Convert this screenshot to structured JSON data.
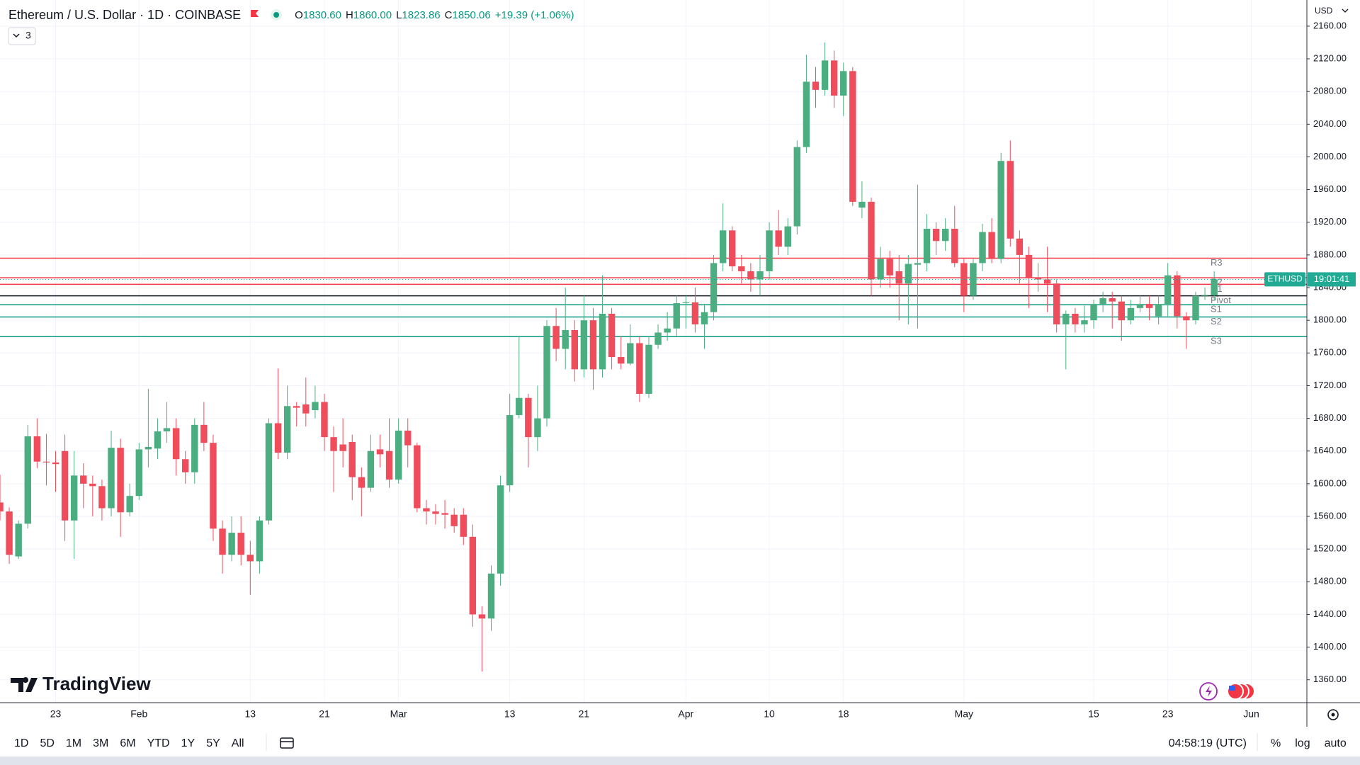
{
  "header": {
    "symbol": "Ethereum / U.S. Dollar · 1D · COINBASE",
    "ohlc": [
      {
        "key": "O",
        "value": "1830.60"
      },
      {
        "key": "H",
        "value": "1860.00"
      },
      {
        "key": "L",
        "value": "1823.86"
      },
      {
        "key": "C",
        "value": "1850.06"
      }
    ],
    "change": "+19.39 (+1.06%)",
    "indicators_count": "3"
  },
  "brand": "TradingView",
  "chart_data": {
    "type": "candlestick",
    "currency": "USD",
    "x": [
      "01-17",
      "01-18",
      "01-19",
      "01-20",
      "01-21",
      "01-22",
      "01-23",
      "01-24",
      "01-25",
      "01-26",
      "01-27",
      "01-28",
      "01-29",
      "01-30",
      "01-31",
      "02-01",
      "02-02",
      "02-03",
      "02-04",
      "02-05",
      "02-06",
      "02-07",
      "02-08",
      "02-09",
      "02-10",
      "02-11",
      "02-12",
      "02-13",
      "02-14",
      "02-15",
      "02-16",
      "02-17",
      "02-18",
      "02-19",
      "02-20",
      "02-21",
      "02-22",
      "02-23",
      "02-24",
      "02-25",
      "02-26",
      "02-27",
      "02-28",
      "03-01",
      "03-02",
      "03-03",
      "03-04",
      "03-05",
      "03-06",
      "03-07",
      "03-08",
      "03-09",
      "03-10",
      "03-11",
      "03-12",
      "03-13",
      "03-14",
      "03-15",
      "03-16",
      "03-17",
      "03-18",
      "03-19",
      "03-20",
      "03-21",
      "03-22",
      "03-23",
      "03-24",
      "03-25",
      "03-26",
      "03-27",
      "03-28",
      "03-29",
      "03-30",
      "03-31",
      "04-01",
      "04-02",
      "04-03",
      "04-04",
      "04-05",
      "04-06",
      "04-07",
      "04-08",
      "04-09",
      "04-10",
      "04-11",
      "04-12",
      "04-13",
      "04-14",
      "04-15",
      "04-16",
      "04-17",
      "04-18",
      "04-19",
      "04-20",
      "04-21",
      "04-22",
      "04-23",
      "04-24",
      "04-25",
      "04-26",
      "04-27",
      "04-28",
      "04-29",
      "04-30",
      "05-01",
      "05-02",
      "05-03",
      "05-04",
      "05-05",
      "05-06",
      "05-07",
      "05-08",
      "05-09",
      "05-10",
      "05-11",
      "05-12",
      "05-13",
      "05-14",
      "05-15",
      "05-16",
      "05-17",
      "05-18",
      "05-19",
      "05-20",
      "05-21",
      "05-22",
      "05-23",
      "05-24",
      "05-25",
      "05-26",
      "05-27",
      "05-28"
    ],
    "open": [
      1577,
      1566,
      1511,
      1551,
      1658,
      1627,
      1626,
      1640,
      1555,
      1610,
      1600,
      1597,
      1570,
      1644,
      1565,
      1585,
      1642,
      1643,
      1664,
      1668,
      1630,
      1614,
      1672,
      1650,
      1545,
      1513,
      1540,
      1513,
      1505,
      1555,
      1674,
      1638,
      1695,
      1697,
      1690,
      1700,
      1657,
      1648,
      1651,
      1608,
      1595,
      1642,
      1640,
      1605,
      1665,
      1647,
      1570,
      1566,
      1564,
      1562,
      1562,
      1535,
      1440,
      1435,
      1490,
      1598,
      1684,
      1705,
      1657,
      1680,
      1793,
      1765,
      1788,
      1740,
      1800,
      1740,
      1808,
      1755,
      1747,
      1772,
      1710,
      1770,
      1785,
      1790,
      1821,
      1822,
      1795,
      1810,
      1870,
      1910,
      1866,
      1860,
      1850,
      1860,
      1910,
      1890,
      1915,
      2012,
      2092,
      2082,
      2118,
      2075,
      2105,
      1938,
      1945,
      1850,
      1875,
      1860,
      1845,
      1868,
      1870,
      1912,
      1897,
      1912,
      1870,
      1830,
      1870,
      1908,
      1875,
      1995,
      1900,
      1880,
      1852,
      1850,
      1845,
      1795,
      1808,
      1795,
      1800,
      1820,
      1827,
      1823,
      1800,
      1815,
      1820,
      1805,
      1820,
      1855,
      1805,
      1800,
      1830,
      1830.6
    ],
    "high": [
      1611,
      1571,
      1555,
      1672,
      1680,
      1661,
      1640,
      1660,
      1640,
      1625,
      1610,
      1605,
      1665,
      1655,
      1600,
      1650,
      1716,
      1680,
      1700,
      1680,
      1640,
      1680,
      1700,
      1660,
      1555,
      1560,
      1560,
      1530,
      1560,
      1680,
      1741,
      1720,
      1700,
      1730,
      1720,
      1710,
      1670,
      1680,
      1660,
      1620,
      1660,
      1660,
      1680,
      1680,
      1680,
      1650,
      1580,
      1575,
      1580,
      1570,
      1570,
      1550,
      1450,
      1500,
      1610,
      1710,
      1780,
      1710,
      1720,
      1800,
      1815,
      1840,
      1800,
      1830,
      1815,
      1855,
      1815,
      1780,
      1795,
      1780,
      1780,
      1795,
      1810,
      1830,
      1830,
      1840,
      1820,
      1880,
      1943,
      1915,
      1880,
      1870,
      1880,
      1920,
      1935,
      1925,
      2020,
      2125,
      2110,
      2140,
      2130,
      2115,
      2110,
      1970,
      1950,
      1890,
      1885,
      1880,
      1880,
      1966,
      1930,
      1920,
      1925,
      1940,
      1875,
      1875,
      1918,
      1925,
      2005,
      2020,
      1910,
      1890,
      1870,
      1890,
      1850,
      1812,
      1815,
      1818,
      1825,
      1835,
      1835,
      1830,
      1825,
      1830,
      1830,
      1830,
      1870,
      1860,
      1810,
      1835,
      1840,
      1860
    ],
    "low": [
      1555,
      1502,
      1508,
      1545,
      1619,
      1598,
      1590,
      1530,
      1508,
      1570,
      1560,
      1555,
      1560,
      1535,
      1560,
      1580,
      1620,
      1630,
      1650,
      1610,
      1600,
      1600,
      1640,
      1530,
      1490,
      1505,
      1500,
      1464,
      1490,
      1550,
      1630,
      1630,
      1670,
      1670,
      1680,
      1640,
      1590,
      1620,
      1580,
      1560,
      1590,
      1620,
      1595,
      1600,
      1620,
      1565,
      1550,
      1550,
      1545,
      1540,
      1525,
      1425,
      1370,
      1420,
      1475,
      1590,
      1680,
      1620,
      1640,
      1670,
      1750,
      1740,
      1725,
      1730,
      1715,
      1730,
      1740,
      1740,
      1745,
      1700,
      1705,
      1765,
      1775,
      1780,
      1790,
      1785,
      1765,
      1800,
      1860,
      1860,
      1845,
      1835,
      1830,
      1850,
      1880,
      1880,
      1905,
      2005,
      2060,
      2075,
      2060,
      2050,
      1940,
      1925,
      1830,
      1840,
      1840,
      1800,
      1795,
      1790,
      1860,
      1880,
      1885,
      1865,
      1810,
      1825,
      1860,
      1870,
      1870,
      1890,
      1845,
      1815,
      1835,
      1810,
      1785,
      1740,
      1785,
      1785,
      1790,
      1810,
      1790,
      1775,
      1795,
      1810,
      1800,
      1795,
      1805,
      1790,
      1765,
      1795,
      1825,
      1823.86
    ],
    "close": [
      1566,
      1513,
      1551,
      1658,
      1627,
      1626,
      1624,
      1555,
      1610,
      1600,
      1597,
      1570,
      1644,
      1565,
      1585,
      1642,
      1645,
      1664,
      1668,
      1630,
      1614,
      1672,
      1650,
      1545,
      1513,
      1540,
      1513,
      1505,
      1555,
      1674,
      1638,
      1695,
      1693,
      1686,
      1700,
      1657,
      1640,
      1640,
      1608,
      1595,
      1640,
      1636,
      1605,
      1665,
      1647,
      1570,
      1566,
      1563,
      1562,
      1548,
      1535,
      1440,
      1435,
      1490,
      1598,
      1684,
      1705,
      1657,
      1680,
      1793,
      1765,
      1788,
      1740,
      1800,
      1740,
      1808,
      1755,
      1747,
      1772,
      1710,
      1770,
      1785,
      1790,
      1821,
      1822,
      1795,
      1810,
      1870,
      1910,
      1866,
      1860,
      1850,
      1860,
      1910,
      1890,
      1915,
      2012,
      2092,
      2082,
      2118,
      2075,
      2105,
      1945,
      1945,
      1850,
      1875,
      1855,
      1845,
      1869,
      1870,
      1912,
      1897,
      1912,
      1870,
      1830,
      1870,
      1908,
      1875,
      1995,
      1900,
      1880,
      1852,
      1850,
      1845,
      1795,
      1808,
      1795,
      1800,
      1820,
      1827,
      1823,
      1800,
      1815,
      1820,
      1815,
      1820,
      1855,
      1805,
      1800,
      1830,
      1831,
      1850.06
    ],
    "up_color": "#4cae80",
    "down_color": "#ef4c5c",
    "xlim": [
      "01-17",
      "06-07"
    ],
    "xticks": [
      {
        "value": "01-23",
        "label": "23"
      },
      {
        "value": "02-01",
        "label": "Feb"
      },
      {
        "value": "02-13",
        "label": "13"
      },
      {
        "value": "02-21",
        "label": "21"
      },
      {
        "value": "03-01",
        "label": "Mar"
      },
      {
        "value": "03-13",
        "label": "13"
      },
      {
        "value": "03-21",
        "label": "21"
      },
      {
        "value": "04-01",
        "label": "Apr"
      },
      {
        "value": "04-10",
        "label": "10"
      },
      {
        "value": "04-18",
        "label": "18"
      },
      {
        "value": "05-01",
        "label": "May"
      },
      {
        "value": "05-15",
        "label": "15"
      },
      {
        "value": "05-23",
        "label": "23"
      },
      {
        "value": "06-01",
        "label": "Jun"
      }
    ],
    "ylim": [
      1332,
      2192
    ],
    "yticks": [
      {
        "value": 1360,
        "label": "1360.00"
      },
      {
        "value": 1400,
        "label": "1400.00"
      },
      {
        "value": 1440,
        "label": "1440.00"
      },
      {
        "value": 1480,
        "label": "1480.00"
      },
      {
        "value": 1520,
        "label": "1520.00"
      },
      {
        "value": 1560,
        "label": "1560.00"
      },
      {
        "value": 1600,
        "label": "1600.00"
      },
      {
        "value": 1640,
        "label": "1640.00"
      },
      {
        "value": 1680,
        "label": "1680.00"
      },
      {
        "value": 1720,
        "label": "1720.00"
      },
      {
        "value": 1760,
        "label": "1760.00"
      },
      {
        "value": 1800,
        "label": "1800.00"
      },
      {
        "value": 1840,
        "label": "1840.00"
      },
      {
        "value": 1880,
        "label": "1880.00"
      },
      {
        "value": 1920,
        "label": "1920.00"
      },
      {
        "value": 1960,
        "label": "1960.00"
      },
      {
        "value": 2000,
        "label": "2000.00"
      },
      {
        "value": 2040,
        "label": "2040.00"
      },
      {
        "value": 2080,
        "label": "2080.00"
      },
      {
        "value": 2120,
        "label": "2120.00"
      },
      {
        "value": 2160,
        "label": "2160.00"
      }
    ],
    "grid": true,
    "levels": [
      {
        "name": "R3",
        "value": 1876,
        "color": "#f23645"
      },
      {
        "name": "R2",
        "value": 1852,
        "color": "#f23645"
      },
      {
        "name": "R1",
        "value": 1844,
        "color": "#f23645"
      },
      {
        "name": "Pivot",
        "value": 1830,
        "color": "#131722"
      },
      {
        "name": "S1",
        "value": 1819,
        "color": "#089981"
      },
      {
        "name": "S2",
        "value": 1804,
        "color": "#089981"
      },
      {
        "name": "S3",
        "value": 1780,
        "color": "#089981"
      }
    ],
    "last_price": {
      "symbol": "ETHUSD",
      "countdown": "19:01:41",
      "value": 1850.06,
      "color": "#22ab94"
    }
  },
  "toolbar": {
    "ranges": [
      "1D",
      "5D",
      "1M",
      "3M",
      "6M",
      "YTD",
      "1Y",
      "5Y",
      "All"
    ],
    "time": "04:58:19 (UTC)",
    "options": [
      "%",
      "log",
      "auto"
    ]
  }
}
